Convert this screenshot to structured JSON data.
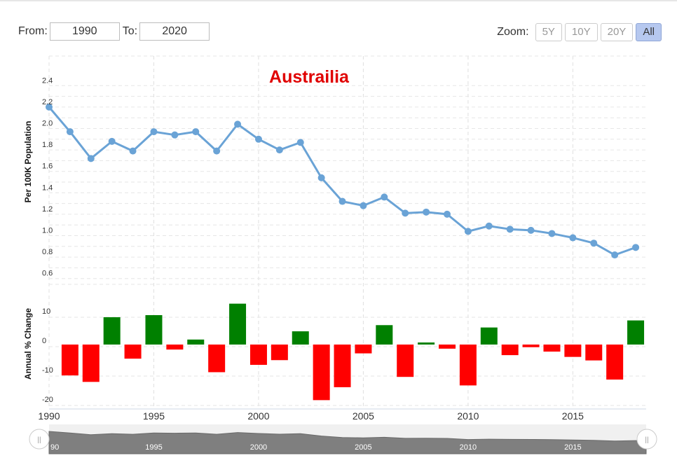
{
  "controls": {
    "from_label": "From:",
    "from_value": "1990",
    "to_label": "To:",
    "to_value": "2020",
    "zoom_label": "Zoom:",
    "zoom_buttons": [
      "5Y",
      "10Y",
      "20Y",
      "All"
    ],
    "zoom_active": "All"
  },
  "colors": {
    "line": "#6aa3d6",
    "positive": "#008000",
    "negative": "#ff0000",
    "title": "#e00000",
    "navigator_fill": "#7f7f7f"
  },
  "chart_data": [
    {
      "type": "line",
      "title": "Austrailia",
      "ylabel": "Per 100K Population",
      "ylim": [
        0.5,
        2.5
      ],
      "yticks": [
        "2.4",
        "2.2",
        "2.0",
        "1.8",
        "1.6",
        "1.4",
        "1.2",
        "1.0",
        "0.8",
        "0.6"
      ],
      "x": [
        1990,
        1991,
        1992,
        1993,
        1994,
        1995,
        1996,
        1997,
        1998,
        1999,
        2000,
        2001,
        2002,
        2003,
        2004,
        2005,
        2006,
        2007,
        2008,
        2009,
        2010,
        2011,
        2012,
        2013,
        2014,
        2015,
        2016,
        2017,
        2018
      ],
      "series": [
        {
          "values": [
            2.2,
            1.97,
            1.72,
            1.88,
            1.79,
            1.97,
            1.94,
            1.97,
            1.79,
            2.04,
            1.9,
            1.8,
            1.87,
            1.54,
            1.32,
            1.28,
            1.36,
            1.21,
            1.22,
            1.2,
            1.04,
            1.09,
            1.06,
            1.05,
            1.02,
            0.98,
            0.93,
            0.82,
            0.89
          ]
        }
      ],
      "grid": true
    },
    {
      "type": "bar",
      "ylabel": "Annual % Change",
      "ylim": [
        -20,
        13
      ],
      "yticks": [
        "10",
        "0",
        "-10",
        "-20"
      ],
      "x": [
        1991,
        1992,
        1993,
        1994,
        1995,
        1996,
        1997,
        1998,
        1999,
        2000,
        2001,
        2002,
        2003,
        2004,
        2005,
        2006,
        2007,
        2008,
        2009,
        2010,
        2011,
        2012,
        2013,
        2014,
        2015,
        2016,
        2017,
        2018
      ],
      "values": [
        -10.5,
        -12.7,
        9.3,
        -4.8,
        10,
        -1.7,
        1.7,
        -9.4,
        13.9,
        -6.9,
        -5.3,
        4.5,
        -18.9,
        -14.5,
        -3,
        6.6,
        -11,
        0.7,
        -1.4,
        -13.9,
        5.8,
        -3.6,
        -0.9,
        -2.4,
        -4.2,
        -5.4,
        -11.9,
        8.2
      ],
      "xticks": [
        "1990",
        "1995",
        "2000",
        "2005",
        "2010",
        "2015"
      ],
      "grid": true
    }
  ],
  "navigator": {
    "labels": [
      "90",
      "1995",
      "2000",
      "2005",
      "2010",
      "2015"
    ],
    "handle_glyph": "||"
  }
}
